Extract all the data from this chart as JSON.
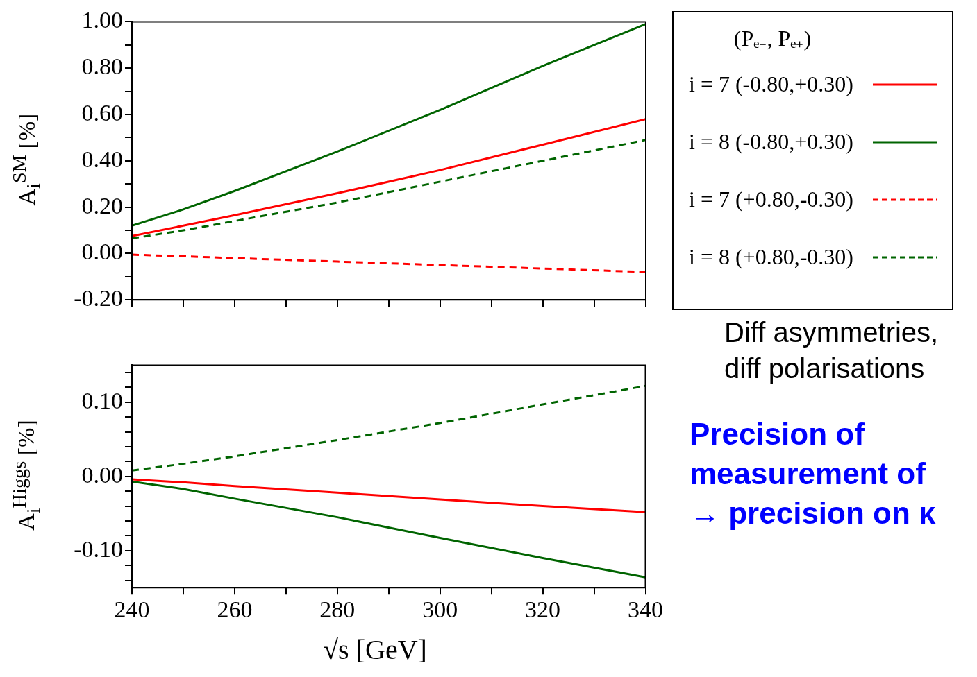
{
  "chart_data": [
    {
      "type": "line",
      "ylabel": "A$_{i}$$^{SM}$ [%]",
      "legend_title": "(Pₑ₋, Pₑ₊)",
      "legend": "right",
      "tick_labels": "y",
      "grid": false,
      "x": [
        240,
        250,
        260,
        280,
        300,
        320,
        340
      ],
      "xlim": [
        240,
        340
      ],
      "xticks": [
        {
          "value": 240,
          "label": null
        },
        {
          "value": 250,
          "label": null
        },
        {
          "value": 260,
          "label": null
        },
        {
          "value": 270,
          "label": null
        },
        {
          "value": 280,
          "label": null
        },
        {
          "value": 290,
          "label": null
        },
        {
          "value": 300,
          "label": null
        },
        {
          "value": 310,
          "label": null
        },
        {
          "value": 320,
          "label": null
        },
        {
          "value": 330,
          "label": null
        },
        {
          "value": 340,
          "label": null
        }
      ],
      "ylim": [
        -0.2,
        1.0
      ],
      "yticks": [
        {
          "value": -0.2,
          "label": "-0.20"
        },
        {
          "value": -0.1,
          "label": null
        },
        {
          "value": 0,
          "label": "0.00"
        },
        {
          "value": 0.1,
          "label": null
        },
        {
          "value": 0.2,
          "label": "0.20"
        },
        {
          "value": 0.3,
          "label": null
        },
        {
          "value": 0.4,
          "label": "0.40"
        },
        {
          "value": 0.5,
          "label": null
        },
        {
          "value": 0.6,
          "label": "0.60"
        },
        {
          "value": 0.7,
          "label": null
        },
        {
          "value": 0.8,
          "label": "0.80"
        },
        {
          "value": 0.9,
          "label": null
        },
        {
          "value": 1.0,
          "label": "1.00"
        }
      ],
      "series": [
        {
          "name": "i = 7 (-0.80,+0.30)",
          "color": "#ff0000",
          "line_style": "solid",
          "values": [
            0.075,
            0.12,
            0.165,
            0.26,
            0.36,
            0.47,
            0.58
          ]
        },
        {
          "name": "i = 8 (-0.80,+0.30)",
          "color": "#006400",
          "line_style": "solid",
          "values": [
            0.12,
            0.19,
            0.27,
            0.44,
            0.62,
            0.81,
            0.99
          ]
        },
        {
          "name": "i = 7 (+0.80,-0.30)",
          "color": "#ff0000",
          "line_style": "dashed",
          "values": [
            -0.005,
            -0.012,
            -0.02,
            -0.035,
            -0.05,
            -0.065,
            -0.08
          ]
        },
        {
          "name": "i = 8 (+0.80,-0.30)",
          "color": "#006400",
          "line_style": "dashed",
          "values": [
            0.065,
            0.1,
            0.14,
            0.22,
            0.31,
            0.4,
            0.49
          ]
        }
      ],
      "annotations": [
        "Diff asymmetries, diff polarisations",
        "Precision of measurement of",
        "→ precision on κ"
      ]
    },
    {
      "type": "line",
      "ylabel": "A$_{i}$$^{Higgs}$ [%]",
      "xlabel": "√s [GeV]",
      "grid": false,
      "x": [
        240,
        250,
        260,
        280,
        300,
        320,
        340
      ],
      "xlim": [
        240,
        340
      ],
      "xticks": [
        240,
        {
          "value": 250,
          "label": null
        },
        260,
        {
          "value": 270,
          "label": null
        },
        280,
        {
          "value": 290,
          "label": null
        },
        300,
        {
          "value": 310,
          "label": null
        },
        320,
        {
          "value": 330,
          "label": null
        },
        340
      ],
      "ylim": [
        -0.15,
        0.15
      ],
      "yticks": [
        {
          "value": -0.14,
          "label": null
        },
        {
          "value": -0.12,
          "label": null
        },
        {
          "value": -0.1,
          "label": "-0.10"
        },
        {
          "value": -0.08,
          "label": null
        },
        {
          "value": -0.06,
          "label": null
        },
        {
          "value": -0.04,
          "label": null
        },
        {
          "value": -0.02,
          "label": null
        },
        {
          "value": 0,
          "label": "0.00"
        },
        {
          "value": 0.02,
          "label": null
        },
        {
          "value": 0.04,
          "label": null
        },
        {
          "value": 0.06,
          "label": null
        },
        {
          "value": 0.08,
          "label": null
        },
        {
          "value": 0.1,
          "label": "0.10"
        },
        {
          "value": 0.12,
          "label": null
        },
        {
          "value": 0.14,
          "label": null
        }
      ],
      "series": [
        {
          "color": "#ff0000",
          "line_style": "solid",
          "values": [
            -0.004,
            -0.008,
            -0.013,
            -0.022,
            -0.031,
            -0.04,
            -0.048
          ]
        },
        {
          "color": "#006400",
          "line_style": "solid",
          "values": [
            -0.007,
            -0.017,
            -0.03,
            -0.055,
            -0.083,
            -0.11,
            -0.136
          ]
        },
        {
          "color": "#006400",
          "line_style": "dashed",
          "values": [
            0.008,
            0.017,
            0.027,
            0.049,
            0.072,
            0.097,
            0.122
          ]
        }
      ]
    }
  ]
}
